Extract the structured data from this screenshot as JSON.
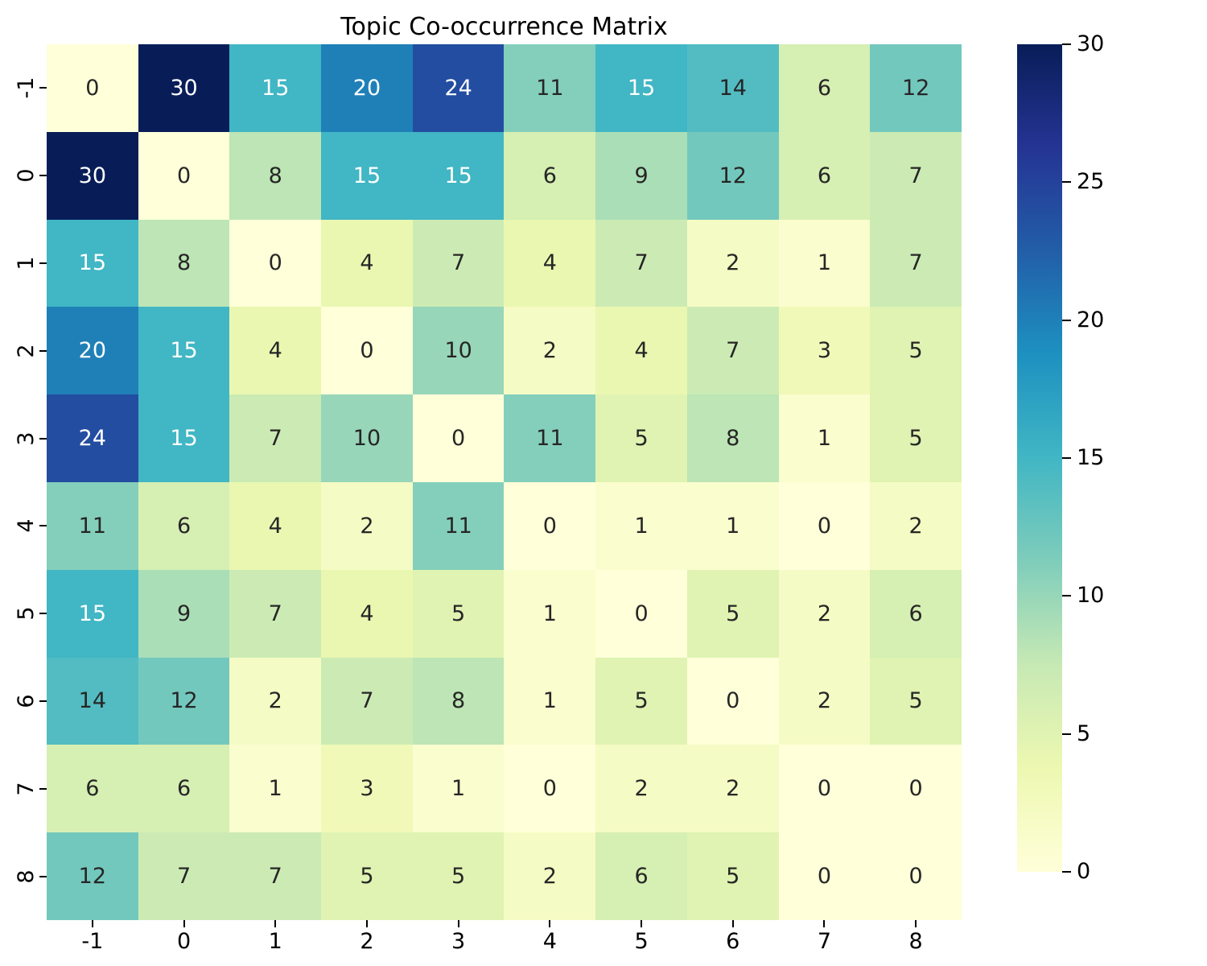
{
  "title": "Topic Co-occurrence Matrix",
  "colors": {
    "background": "#ffffff",
    "annotation_dark_text": "#262626",
    "annotation_light_text": "#ffffff",
    "axis_text": "#000000",
    "colormap_name": "YlGnBu",
    "colormap_anchors": [
      "#ffffd9",
      "#edf8b1",
      "#c7e9b4",
      "#7fcdbb",
      "#41b6c4",
      "#1d91c0",
      "#225ea8",
      "#253494",
      "#081d58"
    ]
  },
  "chart_data": {
    "type": "heatmap",
    "title": "Topic Co-occurrence Matrix",
    "xlabel": "",
    "ylabel": "",
    "x_labels": [
      "-1",
      "0",
      "1",
      "2",
      "3",
      "4",
      "5",
      "6",
      "7",
      "8"
    ],
    "y_labels": [
      "-1",
      "0",
      "1",
      "2",
      "3",
      "4",
      "5",
      "6",
      "7",
      "8"
    ],
    "values": [
      [
        0,
        30,
        15,
        20,
        24,
        11,
        15,
        14,
        6,
        12
      ],
      [
        30,
        0,
        8,
        15,
        15,
        6,
        9,
        12,
        6,
        7
      ],
      [
        15,
        8,
        0,
        4,
        7,
        4,
        7,
        2,
        1,
        7
      ],
      [
        20,
        15,
        4,
        0,
        10,
        2,
        4,
        7,
        3,
        5
      ],
      [
        24,
        15,
        7,
        10,
        0,
        11,
        5,
        8,
        1,
        5
      ],
      [
        11,
        6,
        4,
        2,
        11,
        0,
        1,
        1,
        0,
        2
      ],
      [
        15,
        9,
        7,
        4,
        5,
        1,
        0,
        5,
        2,
        6
      ],
      [
        14,
        12,
        2,
        7,
        8,
        1,
        5,
        0,
        2,
        5
      ],
      [
        6,
        6,
        1,
        3,
        1,
        0,
        2,
        2,
        0,
        0
      ],
      [
        12,
        7,
        7,
        5,
        5,
        2,
        6,
        5,
        0,
        0
      ]
    ],
    "vmin": 0,
    "vmax": 30,
    "annotations": true,
    "grid": false,
    "colorbar": {
      "position": "right",
      "ticks": [
        0,
        5,
        10,
        15,
        20,
        25,
        30
      ]
    }
  }
}
